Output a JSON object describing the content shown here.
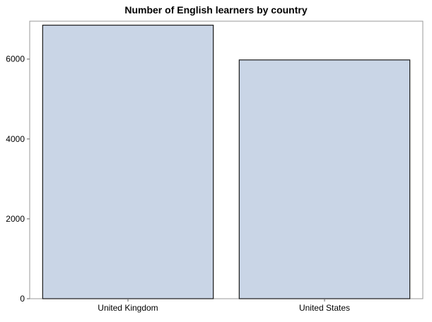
{
  "chart_data": {
    "type": "bar",
    "title": "Number of English learners by country",
    "xlabel": "",
    "ylabel": "",
    "categories": [
      "United Kingdom",
      "United States"
    ],
    "values": [
      6850,
      5980
    ],
    "ylim": [
      0,
      6950
    ],
    "yticks": [
      0,
      2000,
      4000,
      6000
    ],
    "bar_color": "#c9d5e6",
    "bar_edge_color": "#1a1a1a",
    "grid": false,
    "legend": "none"
  }
}
